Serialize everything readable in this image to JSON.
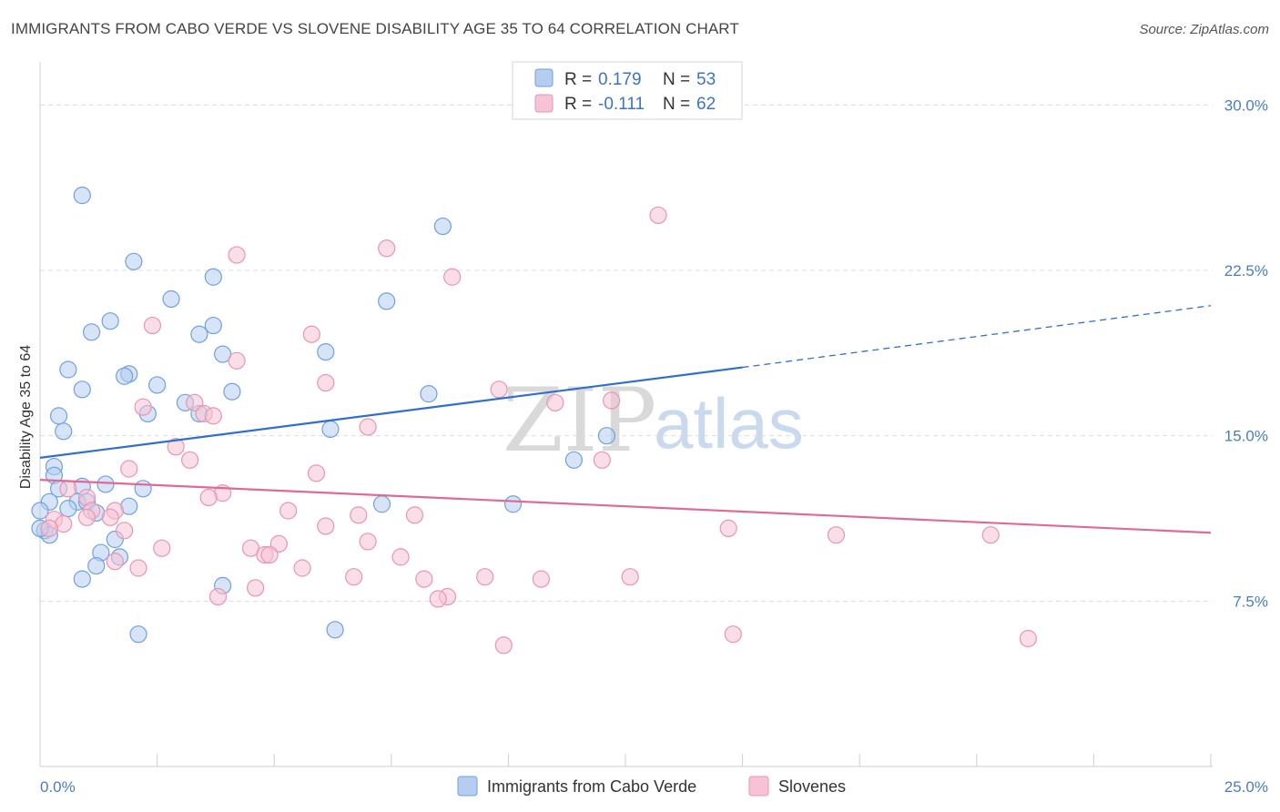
{
  "title": "IMMIGRANTS FROM CABO VERDE VS SLOVENE DISABILITY AGE 35 TO 64 CORRELATION CHART",
  "source": "Source: ZipAtlas.com",
  "watermark": {
    "zip": "ZIP",
    "atlas": "atlas"
  },
  "legend_top": [
    {
      "r_label": "R =",
      "r_value": "0.179",
      "n_label": "N =",
      "n_value": "53"
    },
    {
      "r_label": "R =",
      "r_value": "-0.111",
      "n_label": "N =",
      "n_value": "62"
    }
  ],
  "chart_data": {
    "type": "scatter",
    "title": "IMMIGRANTS FROM CABO VERDE VS SLOVENE DISABILITY AGE 35 TO 64 CORRELATION CHART",
    "xlabel": "",
    "ylabel": "Disability Age 35 to 64",
    "xlim": [
      0,
      25
    ],
    "ylim": [
      0,
      31.5
    ],
    "x_tick_labels": [
      "0.0%",
      "25.0%"
    ],
    "y_ticks": [
      7.5,
      15.0,
      22.5,
      30.0
    ],
    "y_tick_labels": [
      "7.5%",
      "15.0%",
      "22.5%",
      "30.0%"
    ],
    "grid": "horizontal dashed",
    "legend_placement": "top-center and bottom",
    "series": [
      {
        "name": "Immigrants from Cabo Verde",
        "color": "#6fa0e0",
        "fill": "#b7cdf0",
        "trend": {
          "x": [
            0,
            15
          ],
          "y": [
            14.0,
            18.1
          ],
          "dashed_extension": {
            "x": [
              15,
              25
            ],
            "y": [
              18.1,
              20.9
            ]
          }
        },
        "points": [
          [
            0.9,
            25.9
          ],
          [
            2.0,
            22.9
          ],
          [
            3.7,
            22.2
          ],
          [
            8.6,
            24.5
          ],
          [
            7.4,
            21.1
          ],
          [
            2.8,
            21.2
          ],
          [
            1.5,
            20.2
          ],
          [
            1.1,
            19.7
          ],
          [
            3.4,
            19.6
          ],
          [
            3.7,
            20.0
          ],
          [
            0.6,
            18.0
          ],
          [
            1.9,
            17.8
          ],
          [
            1.8,
            17.7
          ],
          [
            3.9,
            18.7
          ],
          [
            6.1,
            18.8
          ],
          [
            2.5,
            17.3
          ],
          [
            0.9,
            17.1
          ],
          [
            4.1,
            17.0
          ],
          [
            8.3,
            16.9
          ],
          [
            3.1,
            16.5
          ],
          [
            0.4,
            15.9
          ],
          [
            2.3,
            16.0
          ],
          [
            3.4,
            16.0
          ],
          [
            0.5,
            15.2
          ],
          [
            6.2,
            15.3
          ],
          [
            12.1,
            15.0
          ],
          [
            11.4,
            13.9
          ],
          [
            0.3,
            13.6
          ],
          [
            0.3,
            13.2
          ],
          [
            1.4,
            12.8
          ],
          [
            2.2,
            12.6
          ],
          [
            0.4,
            12.6
          ],
          [
            0.9,
            12.7
          ],
          [
            0.2,
            12.0
          ],
          [
            0.8,
            12.0
          ],
          [
            1.0,
            12.0
          ],
          [
            0.6,
            11.7
          ],
          [
            1.9,
            11.8
          ],
          [
            7.3,
            11.9
          ],
          [
            10.1,
            11.9
          ],
          [
            0.0,
            11.6
          ],
          [
            1.2,
            11.5
          ],
          [
            0.1,
            10.7
          ],
          [
            0.2,
            10.5
          ],
          [
            1.6,
            10.3
          ],
          [
            1.3,
            9.7
          ],
          [
            1.7,
            9.5
          ],
          [
            1.2,
            9.1
          ],
          [
            0.9,
            8.5
          ],
          [
            3.9,
            8.2
          ],
          [
            2.1,
            6.0
          ],
          [
            6.3,
            6.2
          ],
          [
            0.0,
            10.8
          ]
        ]
      },
      {
        "name": "Slovenes",
        "color": "#e895b0",
        "fill": "#f6c3d4",
        "trend": {
          "x": [
            0,
            25
          ],
          "y": [
            13.0,
            10.6
          ]
        },
        "points": [
          [
            13.2,
            25.0
          ],
          [
            7.4,
            23.5
          ],
          [
            4.2,
            23.2
          ],
          [
            8.8,
            22.2
          ],
          [
            2.4,
            20.0
          ],
          [
            5.8,
            19.6
          ],
          [
            4.2,
            18.4
          ],
          [
            6.1,
            17.4
          ],
          [
            9.8,
            17.1
          ],
          [
            11.0,
            16.5
          ],
          [
            12.2,
            16.6
          ],
          [
            2.2,
            16.3
          ],
          [
            3.3,
            16.5
          ],
          [
            3.5,
            16.0
          ],
          [
            3.7,
            15.9
          ],
          [
            7.0,
            15.4
          ],
          [
            2.9,
            14.5
          ],
          [
            12.0,
            13.9
          ],
          [
            3.2,
            13.9
          ],
          [
            1.9,
            13.5
          ],
          [
            5.9,
            13.3
          ],
          [
            0.6,
            12.6
          ],
          [
            1.0,
            12.2
          ],
          [
            3.9,
            12.4
          ],
          [
            3.6,
            12.2
          ],
          [
            5.3,
            11.6
          ],
          [
            1.1,
            11.6
          ],
          [
            1.6,
            11.6
          ],
          [
            6.8,
            11.4
          ],
          [
            8.0,
            11.4
          ],
          [
            0.3,
            11.2
          ],
          [
            1.0,
            11.3
          ],
          [
            1.5,
            11.3
          ],
          [
            0.5,
            11.0
          ],
          [
            0.2,
            10.8
          ],
          [
            1.8,
            10.7
          ],
          [
            6.1,
            10.9
          ],
          [
            14.7,
            10.8
          ],
          [
            17.0,
            10.5
          ],
          [
            20.3,
            10.5
          ],
          [
            7.0,
            10.2
          ],
          [
            5.1,
            10.1
          ],
          [
            4.5,
            9.9
          ],
          [
            2.6,
            9.9
          ],
          [
            4.8,
            9.6
          ],
          [
            4.9,
            9.6
          ],
          [
            7.7,
            9.5
          ],
          [
            1.6,
            9.3
          ],
          [
            2.1,
            9.0
          ],
          [
            5.6,
            9.0
          ],
          [
            6.7,
            8.6
          ],
          [
            9.5,
            8.6
          ],
          [
            10.7,
            8.5
          ],
          [
            8.2,
            8.5
          ],
          [
            12.6,
            8.6
          ],
          [
            4.6,
            8.1
          ],
          [
            3.8,
            7.7
          ],
          [
            8.7,
            7.7
          ],
          [
            8.5,
            7.6
          ],
          [
            14.8,
            6.0
          ],
          [
            9.9,
            5.5
          ],
          [
            21.1,
            5.8
          ]
        ]
      }
    ]
  }
}
